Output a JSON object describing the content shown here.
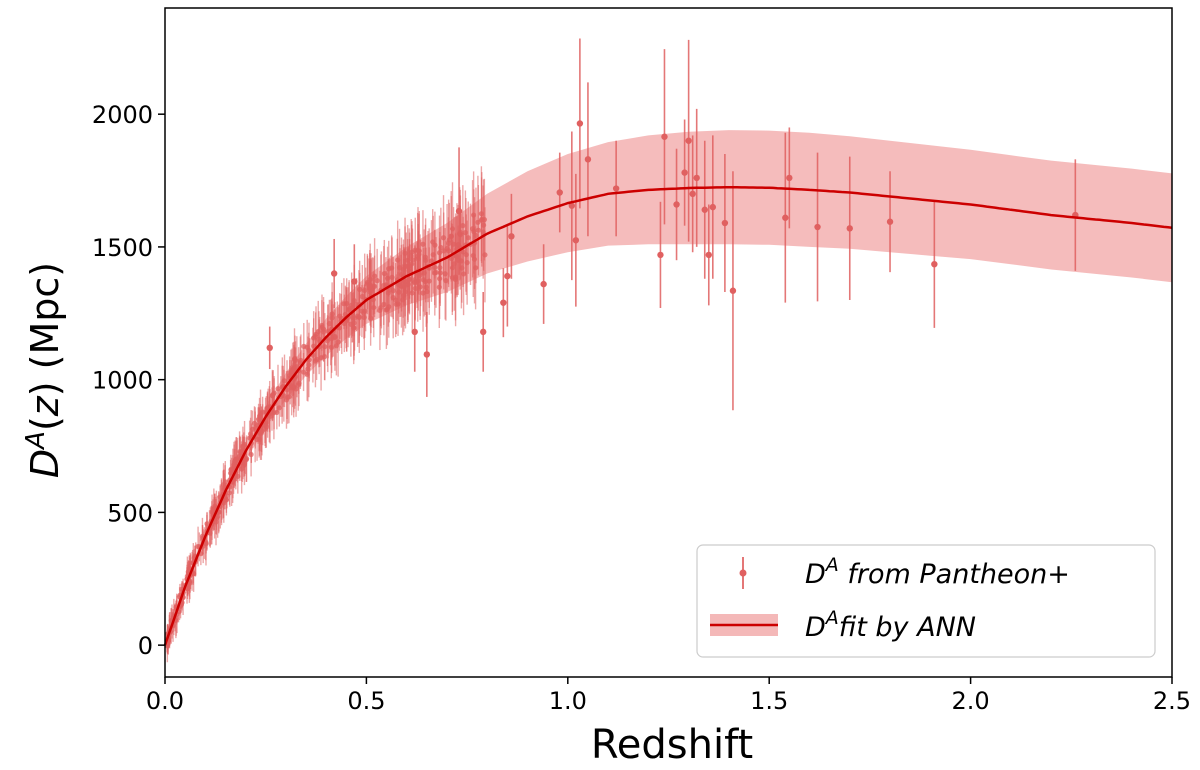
{
  "chart_data": {
    "type": "scatter",
    "xlabel": "Redshift",
    "ylabel": "D^A(z) (Mpc)",
    "xlim": [
      0.0,
      2.5
    ],
    "ylim": [
      -120,
      2400
    ],
    "xticks": [
      0.0,
      0.5,
      1.0,
      1.5,
      2.0,
      2.5
    ],
    "xtick_labels": [
      "0.0",
      "0.5",
      "1.0",
      "1.5",
      "2.0",
      "2.5"
    ],
    "yticks": [
      0,
      500,
      1000,
      1500,
      2000
    ],
    "ytick_labels": [
      "0",
      "500",
      "1000",
      "1500",
      "2000"
    ],
    "grid": false,
    "legend_position": "lower-right",
    "colors": {
      "data": "#e06060",
      "fit_line": "#cc0000",
      "fit_band": "#f4b8b8"
    },
    "series": [
      {
        "name": "D^A from Pantheon+",
        "kind": "errorbar",
        "dense_region_note": "many additional points at z < 0.8 following the fit curve",
        "points": [
          {
            "x": 0.26,
            "y": 1120,
            "err": 80
          },
          {
            "x": 0.42,
            "y": 1400,
            "err": 130
          },
          {
            "x": 0.47,
            "y": 1370,
            "err": 140
          },
          {
            "x": 0.62,
            "y": 1180,
            "err": 150
          },
          {
            "x": 0.65,
            "y": 1095,
            "err": 160
          },
          {
            "x": 0.73,
            "y": 1635,
            "err": 240
          },
          {
            "x": 0.79,
            "y": 1180,
            "err": 150
          },
          {
            "x": 0.84,
            "y": 1290,
            "err": 130
          },
          {
            "x": 0.85,
            "y": 1390,
            "err": 190
          },
          {
            "x": 0.86,
            "y": 1540,
            "err": 160
          },
          {
            "x": 0.94,
            "y": 1360,
            "err": 150
          },
          {
            "x": 0.98,
            "y": 1705,
            "err": 150
          },
          {
            "x": 1.01,
            "y": 1655,
            "err": 280
          },
          {
            "x": 1.02,
            "y": 1525,
            "err": 250
          },
          {
            "x": 1.03,
            "y": 1965,
            "err": 320
          },
          {
            "x": 1.05,
            "y": 1830,
            "err": 290
          },
          {
            "x": 1.12,
            "y": 1720,
            "err": 180
          },
          {
            "x": 1.23,
            "y": 1470,
            "err": 200
          },
          {
            "x": 1.24,
            "y": 1915,
            "err": 330
          },
          {
            "x": 1.27,
            "y": 1660,
            "err": 210
          },
          {
            "x": 1.29,
            "y": 1780,
            "err": 200
          },
          {
            "x": 1.3,
            "y": 1900,
            "err": 380
          },
          {
            "x": 1.31,
            "y": 1700,
            "err": 220
          },
          {
            "x": 1.32,
            "y": 1760,
            "err": 260
          },
          {
            "x": 1.34,
            "y": 1640,
            "err": 260
          },
          {
            "x": 1.35,
            "y": 1470,
            "err": 190
          },
          {
            "x": 1.36,
            "y": 1650,
            "err": 270
          },
          {
            "x": 1.39,
            "y": 1590,
            "err": 260
          },
          {
            "x": 1.41,
            "y": 1335,
            "err": 450
          },
          {
            "x": 1.54,
            "y": 1610,
            "err": 320
          },
          {
            "x": 1.55,
            "y": 1760,
            "err": 190
          },
          {
            "x": 1.62,
            "y": 1575,
            "err": 280
          },
          {
            "x": 1.7,
            "y": 1570,
            "err": 270
          },
          {
            "x": 1.8,
            "y": 1595,
            "err": 190
          },
          {
            "x": 1.91,
            "y": 1435,
            "err": 240
          },
          {
            "x": 2.26,
            "y": 1620,
            "err": 210
          }
        ]
      },
      {
        "name": "D^A fit by ANN",
        "kind": "line_with_band",
        "x": [
          0.0,
          0.05,
          0.1,
          0.15,
          0.2,
          0.25,
          0.3,
          0.35,
          0.4,
          0.45,
          0.5,
          0.6,
          0.7,
          0.8,
          0.9,
          1.0,
          1.1,
          1.2,
          1.3,
          1.4,
          1.5,
          1.6,
          1.7,
          1.8,
          1.9,
          2.0,
          2.1,
          2.2,
          2.3,
          2.4,
          2.5
        ],
        "y": [
          0,
          220,
          410,
          580,
          730,
          860,
          975,
          1075,
          1160,
          1235,
          1300,
          1390,
          1460,
          1550,
          1615,
          1665,
          1700,
          1715,
          1722,
          1725,
          1723,
          1715,
          1705,
          1690,
          1675,
          1660,
          1640,
          1620,
          1605,
          1590,
          1572
        ],
        "band_halfwidth": [
          5,
          12,
          20,
          28,
          35,
          42,
          50,
          60,
          70,
          80,
          90,
          110,
          130,
          150,
          170,
          185,
          195,
          205,
          212,
          215,
          215,
          215,
          212,
          210,
          208,
          206,
          205,
          205,
          205,
          205,
          205
        ]
      }
    ],
    "legend": [
      {
        "base": "D",
        "sup": "A",
        "rest": " from Pantheon+"
      },
      {
        "base": "D",
        "sup": "A",
        "rest": "fit by ANN"
      }
    ]
  }
}
